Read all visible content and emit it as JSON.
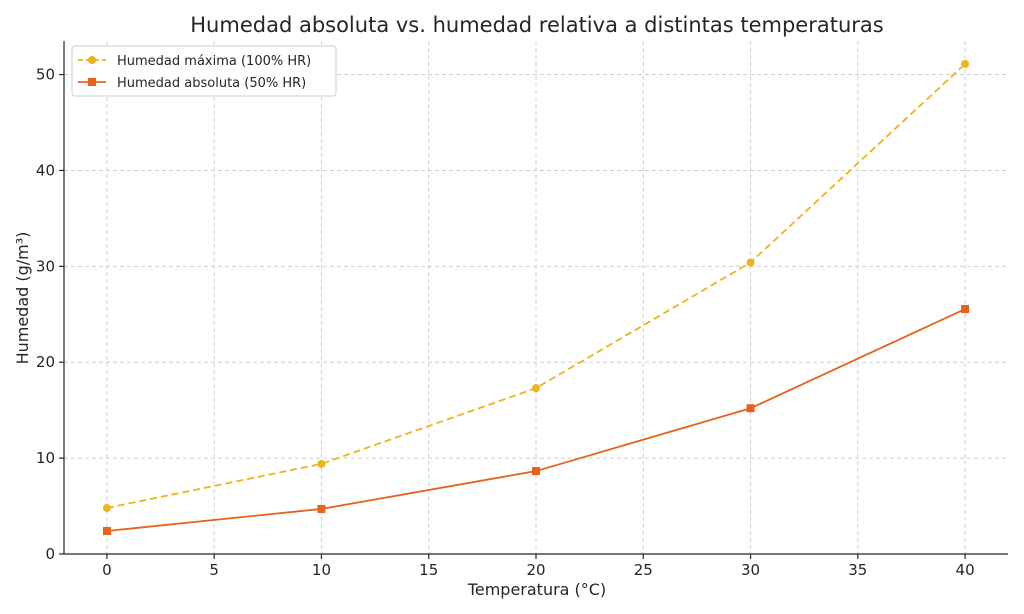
{
  "chart_data": {
    "type": "line",
    "title": "Humedad absoluta vs. humedad relativa a distintas temperaturas",
    "xlabel": "Temperatura (°C)",
    "ylabel": "Humedad (g/m³)",
    "xlim": [
      -2,
      42
    ],
    "ylim": [
      0,
      53.5
    ],
    "xticks": [
      0,
      5,
      10,
      15,
      20,
      25,
      30,
      35,
      40
    ],
    "yticks": [
      0,
      10,
      20,
      30,
      40,
      50
    ],
    "x": [
      0,
      10,
      20,
      30,
      40
    ],
    "grid": true,
    "legend_position": "top-left",
    "series": [
      {
        "name": "Humedad máxima (100% HR)",
        "values": [
          4.8,
          9.4,
          17.3,
          30.4,
          51.1
        ],
        "color": "#f0b21a",
        "line_style": "dashed",
        "marker": "circle"
      },
      {
        "name": "Humedad absoluta (50% HR)",
        "values": [
          2.4,
          4.7,
          8.65,
          15.2,
          25.55
        ],
        "color": "#e8621b",
        "line_style": "solid",
        "marker": "square"
      }
    ]
  }
}
